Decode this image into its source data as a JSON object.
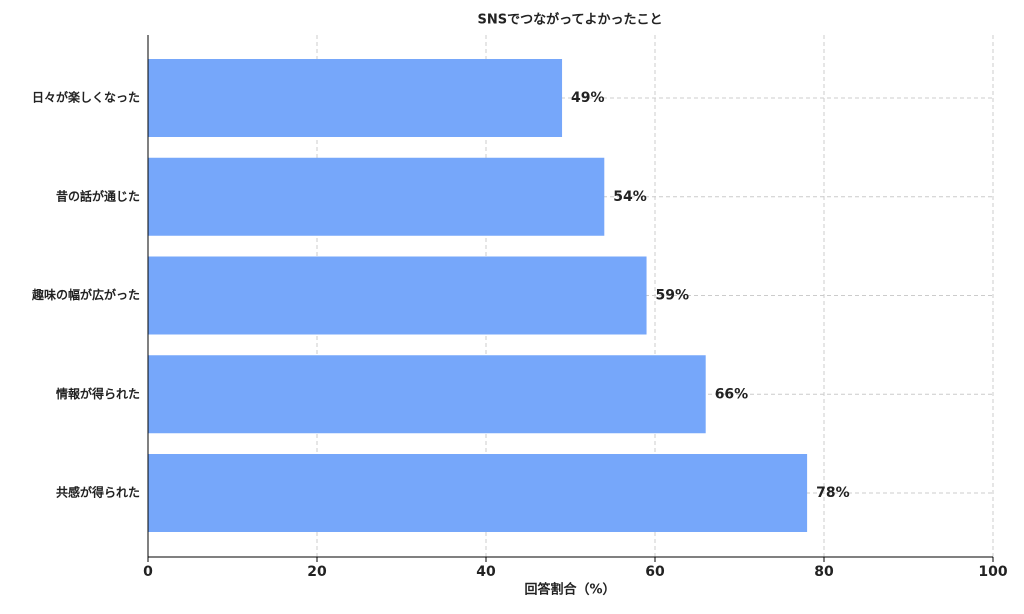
{
  "chart_data": {
    "type": "barh",
    "title": "SNSでつながってよかったこと",
    "xlabel": "回答割合（%）",
    "categories": [
      "日々が楽しくなった",
      "昔の話が通じた",
      "趣味の幅が広がった",
      "情報が得られた",
      "共感が得られた"
    ],
    "values": [
      49,
      54,
      59,
      66,
      78
    ],
    "value_labels": [
      "49%",
      "54%",
      "59%",
      "66%",
      "78%"
    ],
    "color": "#76a7fa",
    "xlim": [
      0,
      100
    ],
    "xticks": [
      0,
      20,
      40,
      60,
      80,
      100
    ],
    "grid": true
  }
}
